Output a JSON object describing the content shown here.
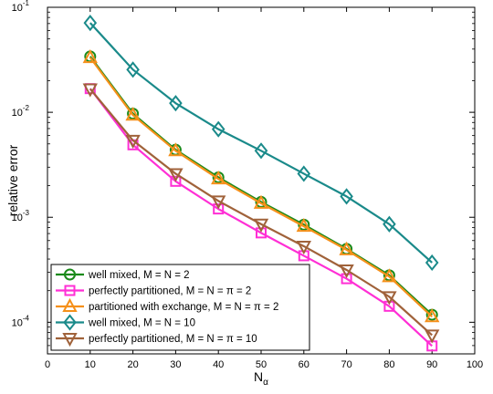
{
  "chart_data": {
    "type": "line",
    "xlabel": "N",
    "xlabel_sub": "α",
    "ylabel": "relative error",
    "xlim": [
      0,
      100
    ],
    "ylim": [
      5e-05,
      0.1
    ],
    "yscale": "log",
    "grid": false,
    "legend_position": "bottom-left",
    "x_ticks": [
      0,
      10,
      20,
      30,
      40,
      50,
      60,
      70,
      80,
      90,
      100
    ],
    "y_ticks": [
      {
        "value": 0.0001,
        "base": "10",
        "exp": "-4"
      },
      {
        "value": 0.001,
        "base": "10",
        "exp": "-3"
      },
      {
        "value": 0.01,
        "base": "10",
        "exp": "-2"
      },
      {
        "value": 0.1,
        "base": "10",
        "exp": "-1"
      }
    ],
    "x": [
      10,
      20,
      30,
      40,
      50,
      60,
      70,
      80,
      90
    ],
    "series": [
      {
        "name": "well mixed, M = N = 2",
        "color": "#1a8a1a",
        "marker": "circle",
        "values": [
          0.034,
          0.0097,
          0.0044,
          0.0024,
          0.0014,
          0.00085,
          0.0005,
          0.00028,
          0.000118
        ]
      },
      {
        "name": "perfectly partitioned, M = N = π = 2",
        "color": "#ff2fd5",
        "marker": "square",
        "values": [
          0.0168,
          0.0049,
          0.0022,
          0.0012,
          0.00071,
          0.00043,
          0.00026,
          0.000142,
          5.95e-05
        ]
      },
      {
        "name": "partitioned with exchange, M = N = π = 2",
        "color": "#f5901a",
        "marker": "triangle-up",
        "values": [
          0.0332,
          0.0094,
          0.0043,
          0.00232,
          0.00136,
          0.00082,
          0.00049,
          0.000272,
          0.000113
        ]
      },
      {
        "name": "well mixed, M = N = 10",
        "color": "#1a8a8a",
        "marker": "diamond",
        "values": [
          0.071,
          0.0255,
          0.0122,
          0.0069,
          0.0043,
          0.0026,
          0.00158,
          0.00086,
          0.00037
        ]
      },
      {
        "name": "perfectly partitioned, M = N = π = 10",
        "color": "#a0623a",
        "marker": "triangle-down",
        "values": [
          0.0167,
          0.0054,
          0.0026,
          0.00143,
          0.00086,
          0.00053,
          0.000315,
          0.000175,
          7.55e-05
        ]
      }
    ]
  }
}
